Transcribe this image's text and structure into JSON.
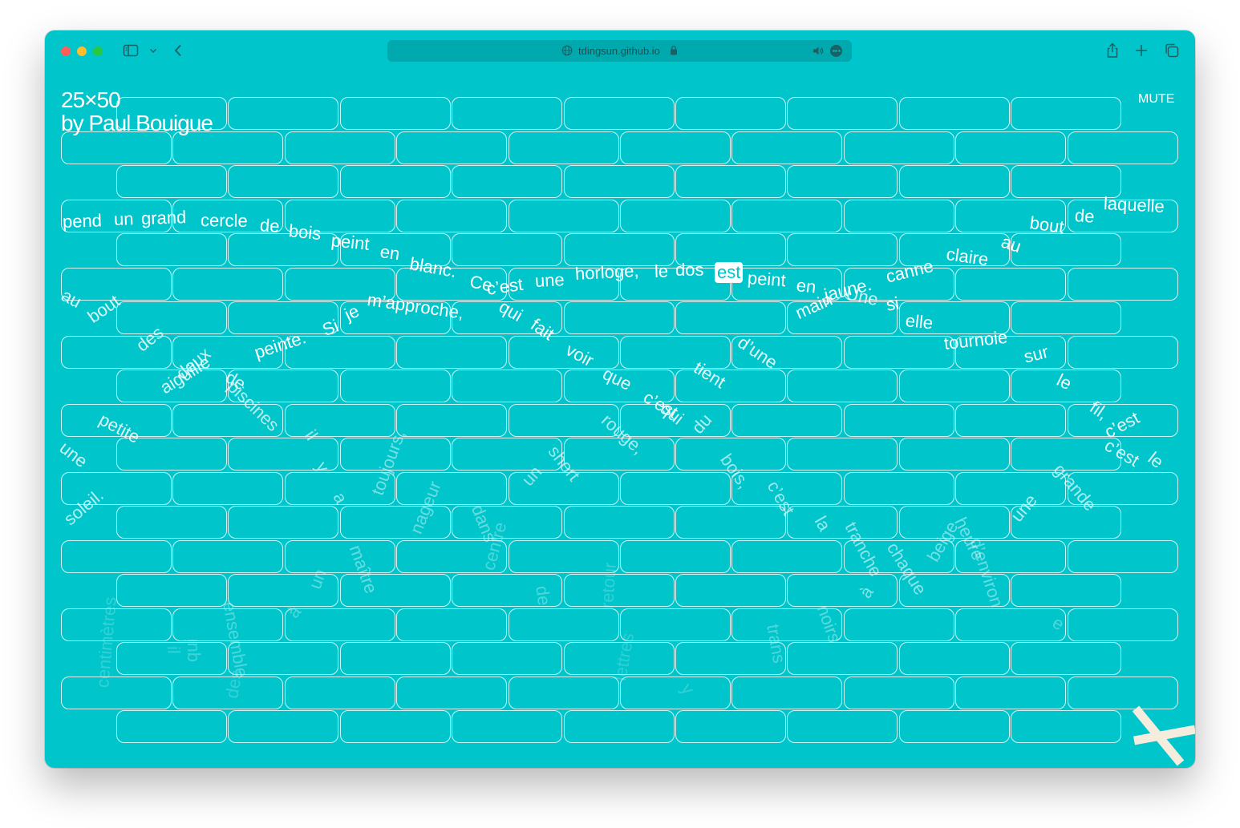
{
  "browser": {
    "domain": "tdingsun.github.io"
  },
  "page": {
    "title": "25×50",
    "author": "by Paul Bouigue",
    "mute_label": "MUTE"
  },
  "colors": {
    "background": "#00c6cc",
    "grid_line": "#ffffff",
    "text": "#ffffff"
  },
  "icons": [
    "sidebar-icon",
    "chevron-down-icon",
    "back-icon",
    "globe-icon",
    "lock-icon",
    "speaker-icon",
    "more-icon",
    "share-icon",
    "new-tab-icon",
    "tabs-icon",
    "close-x-icon"
  ],
  "words": [
    {
      "t": "pend",
      "a": 1
    },
    {
      "t": "un",
      "a": 1
    },
    {
      "t": "grand",
      "a": 1
    },
    {
      "t": "cercle",
      "a": 1
    },
    {
      "t": "de",
      "a": 1
    },
    {
      "t": "bois",
      "a": 1
    },
    {
      "t": "peint",
      "a": 1
    },
    {
      "t": "en",
      "a": 1
    },
    {
      "t": "blanc.",
      "a": 1
    },
    {
      "t": "Ce",
      "a": 1
    },
    {
      "t": "c’est",
      "a": 1
    },
    {
      "t": "une",
      "a": 1
    },
    {
      "t": "horloge,",
      "a": 1
    },
    {
      "t": "le",
      "a": 1
    },
    {
      "t": "dos",
      "a": 1
    },
    {
      "t": "est",
      "a": 1,
      "hl": true
    },
    {
      "t": "peint",
      "a": 1
    },
    {
      "t": "en",
      "a": 1
    },
    {
      "t": "jaune.",
      "a": 1
    },
    {
      "t": "Une",
      "a": 0.8
    },
    {
      "t": "canne",
      "a": 1
    },
    {
      "t": "claire",
      "a": 1
    },
    {
      "t": "au",
      "a": 1
    },
    {
      "t": "bout",
      "a": 1
    },
    {
      "t": "de",
      "a": 1
    },
    {
      "t": "laquelle",
      "a": 1
    },
    {
      "t": "m’approche,",
      "a": 1
    },
    {
      "t": "qui",
      "a": 1
    },
    {
      "t": "fait",
      "a": 1
    },
    {
      "t": "je",
      "a": 1
    },
    {
      "t": "Si",
      "a": 1
    },
    {
      "t": "peinte.",
      "a": 1
    },
    {
      "t": "voir",
      "a": 0.95
    },
    {
      "t": "que",
      "a": 0.9
    },
    {
      "t": "c’est",
      "a": 0.9
    },
    {
      "t": "qui",
      "a": 0.85
    },
    {
      "t": "tient",
      "a": 0.9
    },
    {
      "t": "d’une",
      "a": 0.9
    },
    {
      "t": "main",
      "a": 0.95
    },
    {
      "t": "si",
      "a": 1
    },
    {
      "t": "elle",
      "a": 1
    },
    {
      "t": "tournoie",
      "a": 1
    },
    {
      "t": "sur",
      "a": 0.95
    },
    {
      "t": "le",
      "a": 0.95
    },
    {
      "t": "fil,",
      "a": 0.9
    },
    {
      "t": "c’est",
      "a": 0.9
    },
    {
      "t": "c’est",
      "a": 0.85
    },
    {
      "t": "le",
      "a": 0.85
    },
    {
      "t": "au",
      "a": 0.85
    },
    {
      "t": "bout",
      "a": 0.85
    },
    {
      "t": "des",
      "a": 0.8
    },
    {
      "t": "deux",
      "a": 0.8
    },
    {
      "t": "de",
      "a": 0.85
    },
    {
      "t": "aiguille",
      "a": 0.85
    },
    {
      "t": "piscines",
      "a": 0.7
    },
    {
      "t": "petite",
      "a": 0.85
    },
    {
      "t": "une",
      "a": 0.8
    },
    {
      "t": "il",
      "a": 0.6
    },
    {
      "t": "y",
      "a": 0.6
    },
    {
      "t": "a",
      "a": 0.55
    },
    {
      "t": "rouge,",
      "a": 0.65
    },
    {
      "t": "du",
      "a": 0.7
    },
    {
      "t": "short",
      "a": 0.6
    },
    {
      "t": "un",
      "a": 0.55
    },
    {
      "t": "bois,",
      "a": 0.6
    },
    {
      "t": "c’est",
      "a": 0.6
    },
    {
      "t": "la",
      "a": 0.6
    },
    {
      "t": "tranche",
      "a": 0.55
    },
    {
      "t": "à",
      "a": 0.5
    },
    {
      "t": "chaque",
      "a": 0.55
    },
    {
      "t": "beige",
      "a": 0.45
    },
    {
      "t": "heure",
      "a": 0.45
    },
    {
      "t": "d’environ",
      "a": 0.4
    },
    {
      "t": "une",
      "a": 0.7
    },
    {
      "t": "grande",
      "a": 0.65
    },
    {
      "t": "soleil.",
      "a": 0.7
    },
    {
      "t": "toujours,",
      "a": 0.45
    },
    {
      "t": "nageur",
      "a": 0.4
    },
    {
      "t": "dans",
      "a": 0.4
    },
    {
      "t": "maître",
      "a": 0.4
    },
    {
      "t": "centre",
      "a": 0.3
    },
    {
      "t": "de",
      "a": 0.3
    },
    {
      "t": "un",
      "a": 0.35
    },
    {
      "t": "à",
      "a": 0.3
    },
    {
      "t": "noirs",
      "a": 0.35
    },
    {
      "t": "trans",
      "a": 0.3
    },
    {
      "t": "ensemble",
      "a": 0.3
    },
    {
      "t": "qui",
      "a": 0.25
    },
    {
      "t": "centimètres",
      "a": 0.2
    },
    {
      "t": "des",
      "a": 0.2
    },
    {
      "t": "lettres",
      "a": 0.18
    },
    {
      "t": "retour",
      "a": 0.2
    },
    {
      "t": "e",
      "a": 0.3
    },
    {
      "t": "y",
      "a": 0.2
    },
    {
      "t": "il",
      "a": 0.2
    }
  ]
}
